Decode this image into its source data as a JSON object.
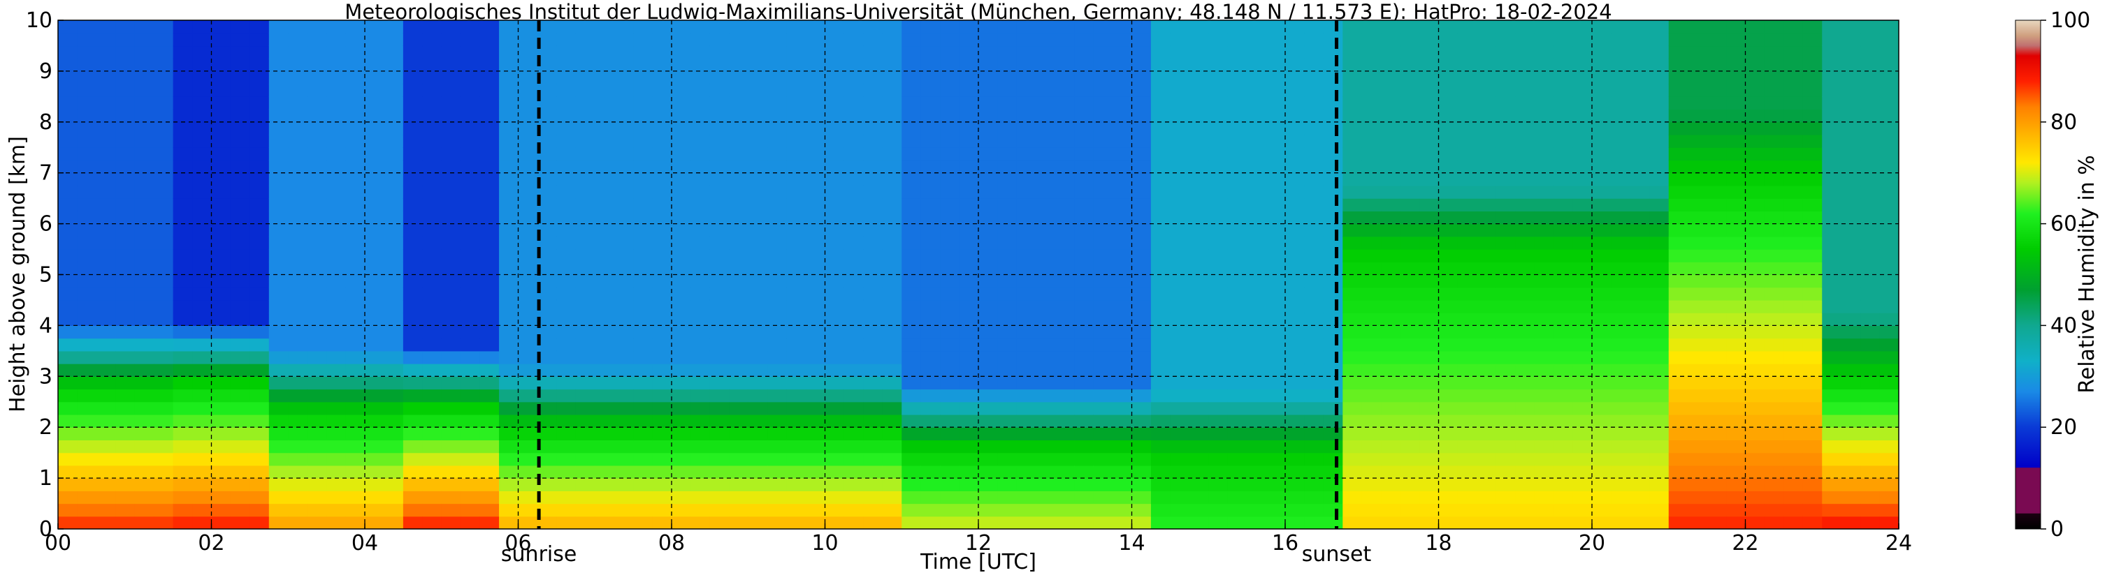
{
  "chart_data": {
    "type": "heatmap",
    "title": "Meteorologisches Institut der Ludwig-Maximilians-Universität (München, Germany; 48.148 N / 11.573 E):    HatPro: 18-02-2024",
    "xlabel": "Time [UTC]",
    "ylabel": "Height above ground [km]",
    "xlim": [
      0,
      24
    ],
    "ylim": [
      0,
      10
    ],
    "x_ticks": [
      0,
      2,
      4,
      6,
      8,
      10,
      12,
      14,
      16,
      18,
      20,
      22,
      24
    ],
    "x_tick_labels": [
      "00",
      "02",
      "04",
      "06",
      "08",
      "10",
      "12",
      "14",
      "16",
      "18",
      "20",
      "22",
      "24"
    ],
    "y_ticks": [
      0,
      1,
      2,
      3,
      4,
      5,
      6,
      7,
      8,
      9,
      10
    ],
    "y_tick_labels": [
      "0",
      "1",
      "2",
      "3",
      "4",
      "5",
      "6",
      "7",
      "8",
      "9",
      "10"
    ],
    "grid": true,
    "markers": [
      {
        "label": "sunrise",
        "x": 6.27
      },
      {
        "label": "sunset",
        "x": 16.67
      }
    ],
    "colorbar": {
      "label": "Relative Humidity in %",
      "range": [
        0,
        100
      ],
      "ticks": [
        0,
        20,
        40,
        60,
        80,
        100
      ],
      "stops": [
        {
          "v": 0,
          "c": "#000000"
        },
        {
          "v": 3,
          "c": "#1a0010"
        },
        {
          "v": 3.1,
          "c": "#7a0a52"
        },
        {
          "v": 12,
          "c": "#7a0a52"
        },
        {
          "v": 12.1,
          "c": "#0000c8"
        },
        {
          "v": 20,
          "c": "#0a3ad6"
        },
        {
          "v": 27,
          "c": "#1a8ae6"
        },
        {
          "v": 33,
          "c": "#10b0c8"
        },
        {
          "v": 40,
          "c": "#10a890"
        },
        {
          "v": 47,
          "c": "#00a030"
        },
        {
          "v": 55,
          "c": "#00cc00"
        },
        {
          "v": 62,
          "c": "#20f020"
        },
        {
          "v": 68,
          "c": "#b0f020"
        },
        {
          "v": 72,
          "c": "#ffe800"
        },
        {
          "v": 78,
          "c": "#ffb000"
        },
        {
          "v": 83,
          "c": "#ff8000"
        },
        {
          "v": 88,
          "c": "#ff2000"
        },
        {
          "v": 93,
          "c": "#e00000"
        },
        {
          "v": 95,
          "c": "#c07070"
        },
        {
          "v": 97,
          "c": "#d0a080"
        },
        {
          "v": 100,
          "c": "#e8d8c0"
        }
      ]
    },
    "grid_resolution": {
      "time_step_h": 0.25,
      "height_step_km": 0.25
    },
    "regimes": [
      {
        "t": [
          0.0,
          1.4
        ],
        "surface_rh": 88,
        "layer_top_km": 2.8,
        "aloft_rh": 23
      },
      {
        "t": [
          1.4,
          2.8
        ],
        "surface_rh": 89,
        "layer_top_km": 2.9,
        "aloft_rh": 18
      },
      {
        "t": [
          2.8,
          4.4
        ],
        "surface_rh": 80,
        "layer_top_km": 2.3,
        "aloft_rh": 27
      },
      {
        "t": [
          4.4,
          5.7
        ],
        "surface_rh": 89,
        "layer_top_km": 2.4,
        "aloft_rh": 20
      },
      {
        "t": [
          5.7,
          11.0
        ],
        "surface_rh": 78,
        "layer_top_km": 2.0,
        "aloft_rh": 28
      },
      {
        "t": [
          11.0,
          14.3
        ],
        "surface_rh": 70,
        "layer_top_km": 1.6,
        "aloft_rh": 25
      },
      {
        "t": [
          14.3,
          16.7
        ],
        "surface_rh": 62,
        "layer_top_km": 1.5,
        "aloft_rh": 32
      },
      {
        "t": [
          16.7,
          21.0
        ],
        "surface_rh": 74,
        "layer_top_km": 5.5,
        "aloft_rh": 38
      },
      {
        "t": [
          21.0,
          23.0
        ],
        "surface_rh": 88,
        "layer_top_km": 7.0,
        "aloft_rh": 45
      },
      {
        "t": [
          23.0,
          24.0
        ],
        "surface_rh": 90,
        "layer_top_km": 3.0,
        "aloft_rh": 40
      }
    ]
  }
}
